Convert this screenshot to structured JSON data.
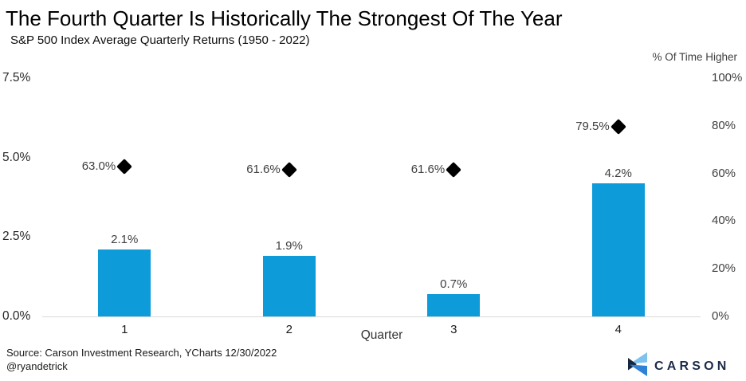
{
  "chart_data": {
    "type": "bar",
    "title": "The Fourth Quarter Is Historically The Strongest Of The Year",
    "subtitle": "S&P 500 Index Average Quarterly Returns (1950 - 2022)",
    "xlabel": "Quarter",
    "categories": [
      "1",
      "2",
      "3",
      "4"
    ],
    "series": [
      {
        "name": "Average Quarterly Return",
        "type": "bar",
        "axis": "left",
        "values": [
          2.1,
          1.9,
          0.7,
          4.2
        ],
        "labels": [
          "2.1%",
          "1.9%",
          "0.7%",
          "4.2%"
        ],
        "color": "#0d9bd9"
      },
      {
        "name": "% Of Time Higher",
        "type": "diamond-marker",
        "axis": "right",
        "values": [
          63.0,
          61.6,
          61.6,
          79.5
        ],
        "labels": [
          "63.0%",
          "61.6%",
          "61.6%",
          "79.5%"
        ],
        "color": "#000000"
      }
    ],
    "left_axis": {
      "min": 0,
      "max": 7.5,
      "ticks": [
        {
          "value": 0,
          "label": "0.0%"
        },
        {
          "value": 2.5,
          "label": "2.5%"
        },
        {
          "value": 5,
          "label": "5.0%"
        },
        {
          "value": 7.5,
          "label": "7.5%"
        }
      ]
    },
    "right_axis": {
      "label": "% Of Time Higher",
      "min": 0,
      "max": 100,
      "ticks": [
        {
          "value": 0,
          "label": "0%"
        },
        {
          "value": 20,
          "label": "20%"
        },
        {
          "value": 40,
          "label": "40%"
        },
        {
          "value": 60,
          "label": "60%"
        },
        {
          "value": 80,
          "label": "80%"
        },
        {
          "value": 100,
          "label": "100%"
        }
      ]
    },
    "grid": "baseline-only",
    "legend_position": "none"
  },
  "colors": {
    "bar": "#0d9bd9",
    "diamond": "#000000",
    "axis_line": "#d9d9d9",
    "logo_navy": "#1b2b4a",
    "logo_light_blue": "#7ec3f0",
    "logo_blue": "#2e81d4"
  },
  "footer": {
    "source_line1": "Source: Carson Investment Research, YCharts 12/30/2022",
    "source_line2": "@ryandetrick",
    "logo_text": "CARSON"
  }
}
